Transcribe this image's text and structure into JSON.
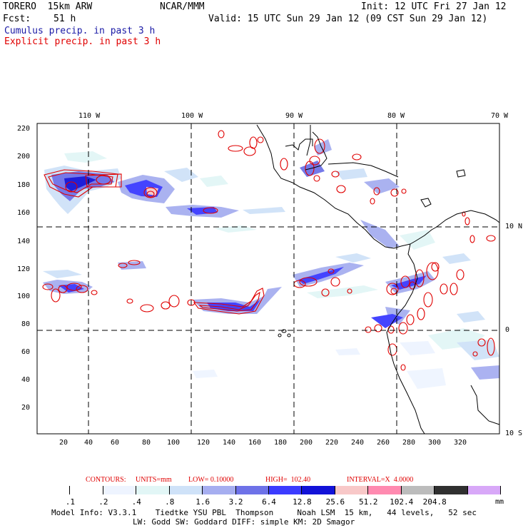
{
  "header": {
    "model": "TORERO  15km ARW",
    "org": "NCAR/MMM",
    "init": "Init: 12 UTC Fri 27 Jan 12",
    "fcst_label": "Fcst:",
    "fcst_value": "51 h",
    "valid": "Valid: 15 UTC Sun 29 Jan 12 (09 CST Sun 29 Jan 12)",
    "legend_cumulus": "Cumulus precip. in past 3 h",
    "legend_explicit": "Explicit precip. in past 3 h",
    "cumulus_color": "#1a1aa6",
    "explicit_color": "#e00000"
  },
  "map": {
    "top_lon_labels": [
      "110 W",
      "100 W",
      "90 W",
      "80 W",
      "70 W"
    ],
    "right_lat_labels": [
      "10 N",
      "0",
      "10 S"
    ],
    "left_y_ticks": [
      "220",
      "200",
      "180",
      "160",
      "140",
      "120",
      "100",
      "80",
      "60",
      "40",
      "20"
    ],
    "bottom_x_ticks": [
      "20",
      "40",
      "60",
      "80",
      "100",
      "120",
      "140",
      "160",
      "180",
      "200",
      "220",
      "240",
      "260",
      "280",
      "300",
      "320"
    ]
  },
  "contours_line": {
    "contours": "CONTOURS:",
    "units": "UNITS=mm",
    "low": "LOW= 0.10000",
    "high": "HIGH=  102.40",
    "interval": "INTERVAL=X  4.0000"
  },
  "colorbar": {
    "labels": [
      ".1",
      ".2",
      ".4",
      ".8",
      "1.6",
      "3.2",
      "6.4",
      "12.8",
      "25.6",
      "51.2",
      "102.4",
      "204.8"
    ],
    "unit": "mm",
    "colors": [
      "#ffffff",
      "#ffffff",
      "#eef4ff",
      "#e2f6f6",
      "#cfe2f8",
      "#a6aef0",
      "#6e72e8",
      "#3b3bff",
      "#1212d8",
      "#f8c8c8",
      "#ff8ab0",
      "#bcbcbc",
      "#303030",
      "#d8a8f8"
    ]
  },
  "footer": {
    "line1": "Model Info: V3.3.1    Tiedtke YSU PBL  Thompson     Noah LSM  15 km,   44 levels,   52 sec",
    "line2": "LW: Godd SW: Goddard DIFF: simple KM: 2D Smagor"
  }
}
